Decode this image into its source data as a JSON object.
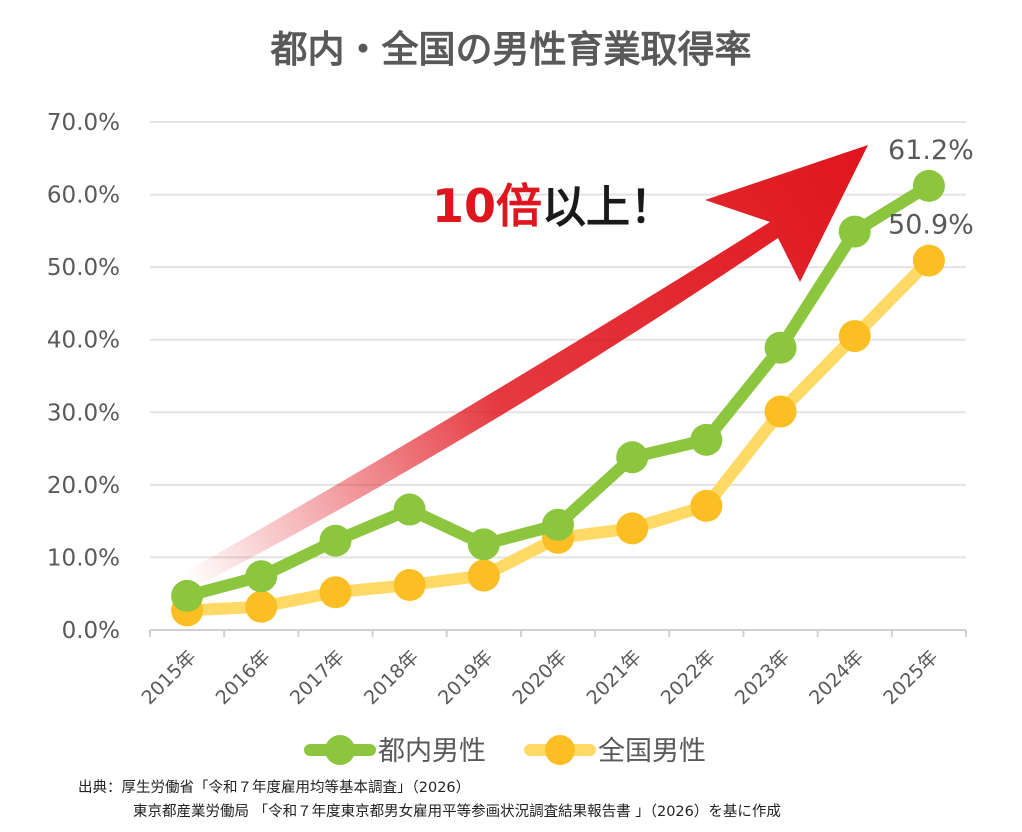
{
  "chart_data": {
    "type": "line",
    "title": "都内・全国の男性育業取得率",
    "categories": [
      "2015年",
      "2016年",
      "2017年",
      "2018年",
      "2019年",
      "2020年",
      "2021年",
      "2022年",
      "2023年",
      "2024年",
      "2025年"
    ],
    "series": [
      {
        "name": "都内男性",
        "color": "#8CC63F",
        "values": [
          4.7,
          7.4,
          12.3,
          16.6,
          11.8,
          14.5,
          23.8,
          26.2,
          38.9,
          54.9,
          61.2
        ]
      },
      {
        "name": "全国男性",
        "color": "#FBBF24",
        "line_color": "#FFD966",
        "values": [
          2.7,
          3.2,
          5.2,
          6.2,
          7.5,
          12.7,
          14.0,
          17.1,
          30.1,
          40.5,
          50.9
        ]
      }
    ],
    "ylim": [
      0,
      70
    ],
    "yticks": [
      0,
      10,
      20,
      30,
      40,
      50,
      60,
      70
    ],
    "ytick_labels": [
      "0.0%",
      "10.0%",
      "20.0%",
      "30.0%",
      "40.0%",
      "50.0%",
      "60.0%",
      "70.0%"
    ],
    "data_labels": [
      {
        "series": 0,
        "index": 10,
        "text": "61.2%"
      },
      {
        "series": 1,
        "index": 10,
        "text": "50.9%"
      }
    ],
    "annotation": {
      "number": "10倍",
      "rest": "以上！",
      "number_color": "#E0161E",
      "arrow_color": "#E0161E"
    },
    "grid": true,
    "legend_position": "bottom"
  },
  "source": {
    "line1": "出典：厚生労働省「令和７年度雇用均等基本調査」（2026）",
    "line2": "東京都産業労働局 「令和７年度東京都男女雇用平等参画状況調査結果報告書 」（2026）を基に作成"
  }
}
